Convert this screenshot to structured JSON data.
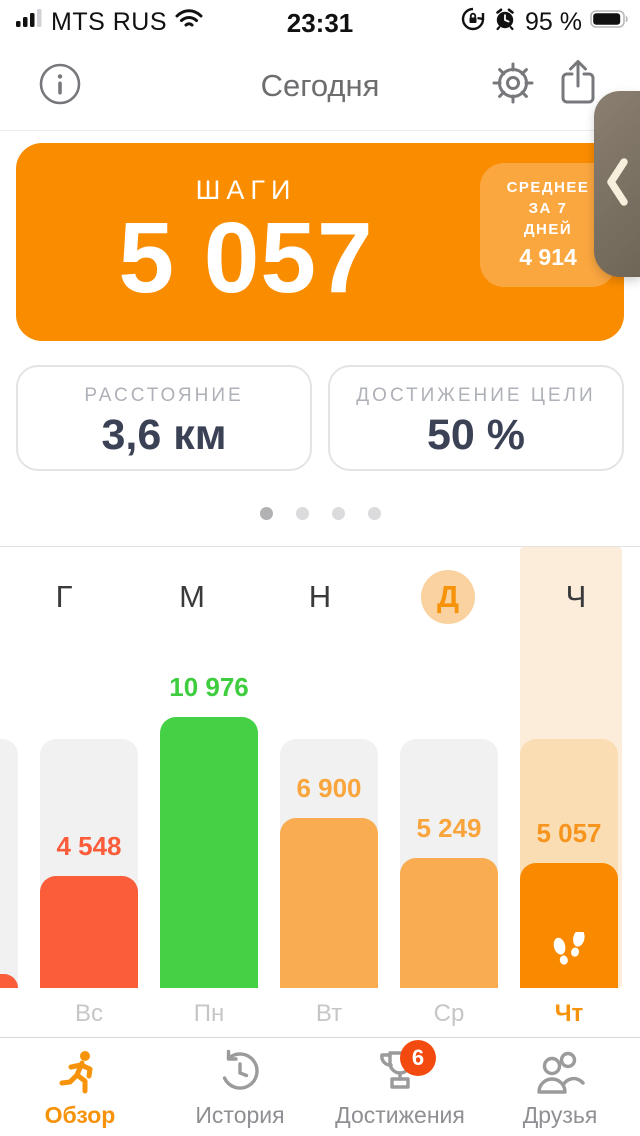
{
  "status_bar": {
    "carrier": "MTS RUS",
    "time": "23:31",
    "battery_percent": "95 %"
  },
  "header": {
    "title": "Сегодня",
    "icons": [
      "info-icon",
      "gear-icon",
      "share-icon"
    ]
  },
  "steps_card": {
    "label": "ШАГИ",
    "value": "5 057",
    "avg_badge": {
      "line1": "СРЕДНЕЕ",
      "line2": "ЗА 7",
      "line3": "ДНЕЙ",
      "value": "4 914"
    }
  },
  "metrics": [
    {
      "label": "РАССТОЯНИЕ",
      "value": "3,6 км"
    },
    {
      "label": "ДОСТИЖЕНИЕ ЦЕЛИ",
      "value": "50 %"
    }
  ],
  "page_indicator": {
    "pages": 4,
    "active_index": 0
  },
  "period_tabs": {
    "items": [
      {
        "label": "Г"
      },
      {
        "label": "М"
      },
      {
        "label": "Н"
      },
      {
        "label": "Д"
      },
      {
        "label": "Ч"
      }
    ],
    "selected_index": 3
  },
  "chart_data": {
    "type": "bar",
    "title": "Шаги по дням недели",
    "categories": [
      "Вс",
      "Пн",
      "Вт",
      "Ср",
      "Чт"
    ],
    "values": [
      4548,
      10976,
      6900,
      5249,
      5057
    ],
    "value_labels": [
      "4 548",
      "10 976",
      "6 900",
      "5 249",
      "5 057"
    ],
    "bar_colors": [
      "#FB5D3B",
      "#45D145",
      "#FAAC51",
      "#FAAC51",
      "#F98A00"
    ],
    "label_colors": [
      "#FB5D3B",
      "#3ECD3E",
      "#F9A53C",
      "#F9A53C",
      "#F7941D"
    ],
    "track_colors": [
      "#F1F1F2",
      "#F1F1F2",
      "#F1F1F2",
      "#F1F1F2",
      "#FBDDB4"
    ],
    "goal": 10000,
    "ylim": [
      0,
      11000
    ],
    "selected_index": 4,
    "selected_icon": "footprints-icon",
    "partial_prev_bar": {
      "visible": true,
      "approx_value": 550,
      "color": "#FB5D3B",
      "track_color": "#F1F1F2"
    },
    "grid": false,
    "legend": false
  },
  "tab_bar": {
    "items": [
      {
        "label": "Обзор",
        "icon": "overview-runner-icon",
        "active": true
      },
      {
        "label": "История",
        "icon": "history-icon",
        "active": false
      },
      {
        "label": "Достижения",
        "icon": "achievements-trophy-icon",
        "active": false,
        "badge": "6"
      },
      {
        "label": "Друзья",
        "icon": "friends-icon",
        "active": false
      }
    ]
  },
  "edge_tab": {
    "icon": "chevron-left-icon"
  },
  "colors": {
    "accent_orange": "#F7930A",
    "card_orange": "#FA8C00",
    "badge_orange": "#FBA740",
    "red_orange": "#FB5D3B",
    "green": "#45D145",
    "medium_orange": "#FAAC51",
    "track_gray": "#F1F1F2",
    "today_band": "#FCEDDB",
    "today_track": "#FBDDB4",
    "value_navy": "#3C4256",
    "label_gray": "#AEB1B7",
    "tab_inactive": "#9B9B9B",
    "badge_red": "#F34B0F"
  }
}
